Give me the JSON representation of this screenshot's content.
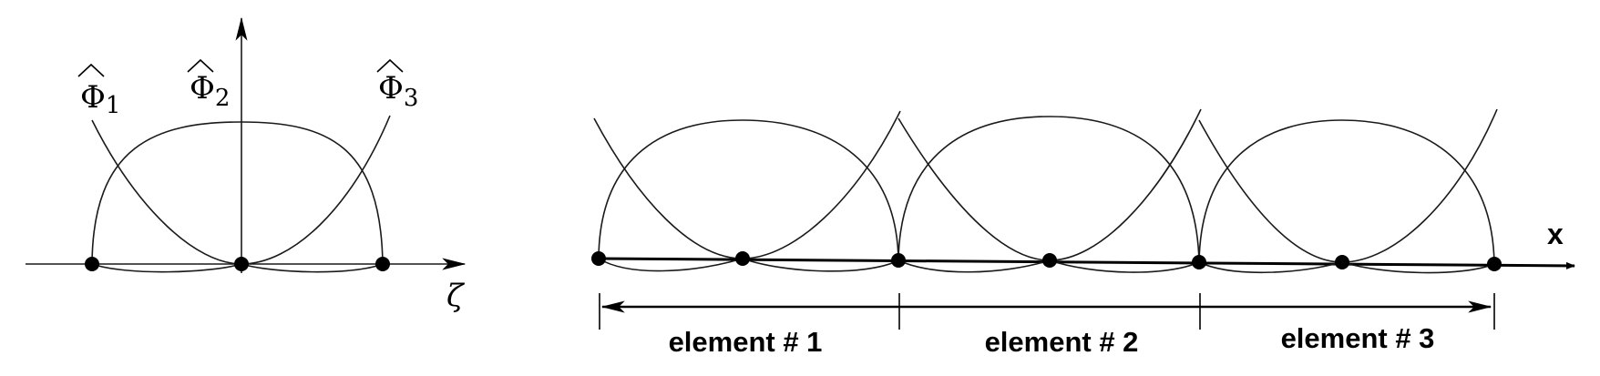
{
  "left_diagram": {
    "basis_labels": [
      "Φ",
      "Φ",
      "Φ"
    ],
    "basis_subscripts": [
      "1",
      "2",
      "3"
    ],
    "axis_label": "ζ"
  },
  "right_diagram": {
    "axis_label": "x",
    "element_labels": [
      "element # 1",
      "element # 2",
      "element # 3"
    ]
  }
}
